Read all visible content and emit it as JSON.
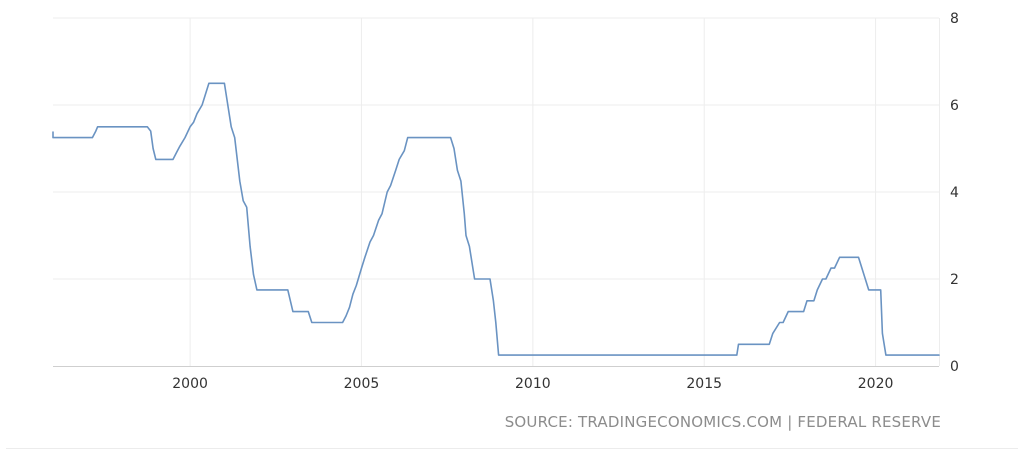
{
  "chart_data": {
    "type": "line",
    "title": "",
    "xlabel": "",
    "ylabel": "",
    "xlim": [
      1996.0,
      2021.85
    ],
    "ylim": [
      0,
      8
    ],
    "x_ticks": [
      "2000",
      "2005",
      "2010",
      "2015",
      "2020"
    ],
    "y_ticks": [
      "0",
      "2",
      "4",
      "6",
      "8"
    ],
    "grid": true,
    "line_color": "#6a93c2",
    "source": "SOURCE: TRADINGECONOMICS.COM | FEDERAL RESERVE",
    "series": [
      {
        "x": [
          1996.0,
          1996.0,
          1997.15,
          1997.25,
          1997.3,
          1998.75,
          1998.85,
          1998.92,
          1999.0,
          1999.5,
          1999.6,
          1999.7,
          1999.85,
          2000.0,
          2000.1,
          2000.2,
          2000.35,
          2000.45,
          2000.55,
          2001.0,
          2001.1,
          2001.2,
          2001.3,
          2001.45,
          2001.55,
          2001.65,
          2001.75,
          2001.85,
          2001.95,
          2002.1,
          2002.85,
          2003.0,
          2003.45,
          2003.55,
          2004.45,
          2004.55,
          2004.65,
          2004.75,
          2004.85,
          2005.0,
          2005.1,
          2005.25,
          2005.35,
          2005.5,
          2005.6,
          2005.75,
          2005.85,
          2006.0,
          2006.1,
          2006.25,
          2006.35,
          2006.5,
          2006.6,
          2007.6,
          2007.7,
          2007.8,
          2007.9,
          2008.0,
          2008.05,
          2008.15,
          2008.3,
          2008.75,
          2008.85,
          2008.92,
          2009.0,
          2015.95,
          2016.0,
          2016.9,
          2017.0,
          2017.2,
          2017.3,
          2017.45,
          2017.5,
          2017.9,
          2018.0,
          2018.2,
          2018.3,
          2018.45,
          2018.55,
          2018.7,
          2018.8,
          2018.95,
          2019.0,
          2019.5,
          2019.6,
          2019.7,
          2019.8,
          2019.9,
          2020.15,
          2020.2,
          2020.3,
          2021.85
        ],
        "y": [
          5.38,
          5.25,
          5.25,
          5.4,
          5.5,
          5.5,
          5.4,
          5.0,
          4.75,
          4.75,
          4.9,
          5.05,
          5.25,
          5.5,
          5.6,
          5.8,
          6.0,
          6.25,
          6.5,
          6.5,
          6.0,
          5.5,
          5.25,
          4.25,
          3.8,
          3.65,
          2.75,
          2.1,
          1.75,
          1.75,
          1.75,
          1.25,
          1.25,
          1.0,
          1.0,
          1.15,
          1.35,
          1.65,
          1.85,
          2.25,
          2.5,
          2.85,
          3.0,
          3.35,
          3.5,
          4.0,
          4.15,
          4.5,
          4.75,
          4.95,
          5.25,
          5.25,
          5.25,
          5.25,
          5.0,
          4.5,
          4.25,
          3.5,
          3.0,
          2.75,
          2.0,
          2.0,
          1.5,
          1.0,
          0.25,
          0.25,
          0.5,
          0.5,
          0.75,
          1.0,
          1.0,
          1.25,
          1.25,
          1.25,
          1.5,
          1.5,
          1.75,
          2.0,
          2.0,
          2.25,
          2.25,
          2.5,
          2.5,
          2.5,
          2.25,
          2.0,
          1.75,
          1.75,
          1.75,
          0.75,
          0.25,
          0.25
        ]
      }
    ]
  }
}
